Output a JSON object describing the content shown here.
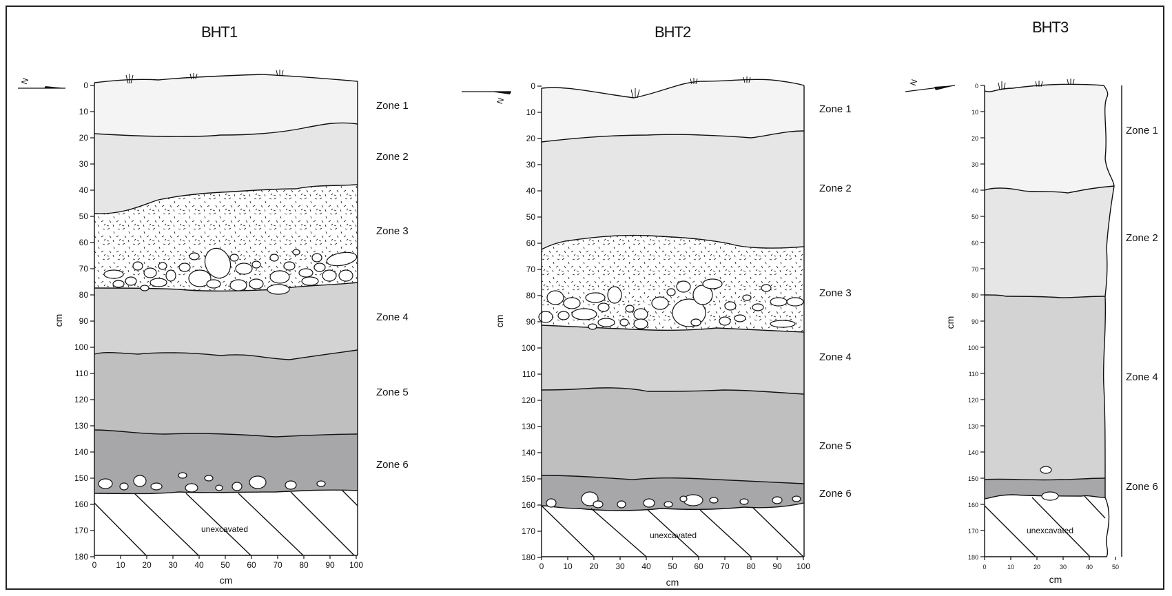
{
  "profiles": [
    {
      "title": "BHT1",
      "y_label": "cm",
      "x_label": "cm",
      "y_ticks": [
        "0",
        "10",
        "20",
        "30",
        "40",
        "50",
        "60",
        "70",
        "80",
        "90",
        "100",
        "110",
        "120",
        "130",
        "140",
        "150",
        "160",
        "170",
        "180"
      ],
      "x_ticks": [
        "0",
        "10",
        "20",
        "30",
        "40",
        "50",
        "60",
        "70",
        "80",
        "90",
        "100"
      ],
      "zones": [
        "Zone 1",
        "Zone 2",
        "Zone 3",
        "Zone 4",
        "Zone 5",
        "Zone 6"
      ],
      "unexcavated": "unexcavated"
    },
    {
      "title": "BHT2",
      "y_label": "cm",
      "x_label": "cm",
      "y_ticks": [
        "0",
        "10",
        "20",
        "30",
        "40",
        "50",
        "60",
        "70",
        "80",
        "90",
        "100",
        "110",
        "120",
        "130",
        "140",
        "150",
        "160",
        "170",
        "180"
      ],
      "x_ticks": [
        "0",
        "10",
        "20",
        "30",
        "40",
        "50",
        "60",
        "70",
        "80",
        "90",
        "100"
      ],
      "zones": [
        "Zone 1",
        "Zone 2",
        "Zone 3",
        "Zone 4",
        "Zone 5",
        "Zone 6"
      ],
      "unexcavated": "unexcavated"
    },
    {
      "title": "BHT3",
      "y_label": "cm",
      "x_label": "cm",
      "y_ticks": [
        "0",
        "10",
        "20",
        "30",
        "40",
        "50",
        "60",
        "70",
        "80",
        "90",
        "100",
        "110",
        "120",
        "130",
        "140",
        "150",
        "160",
        "170",
        "180"
      ],
      "x_ticks": [
        "0",
        "10",
        "20",
        "30",
        "40",
        "50"
      ],
      "zones": [
        "Zone 1",
        "Zone 2",
        "Zone 4",
        "Zone 6"
      ],
      "unexcavated": "unexcavated"
    }
  ],
  "north_label": "N",
  "colors": {
    "zone1": "#f4f4f4",
    "zone2": "#e6e6e7",
    "zone3": "#ffffff",
    "zone4": "#d3d3d4",
    "zone5": "#bfbfc0",
    "zone6": "#a7a7a9",
    "line": "#111111"
  }
}
